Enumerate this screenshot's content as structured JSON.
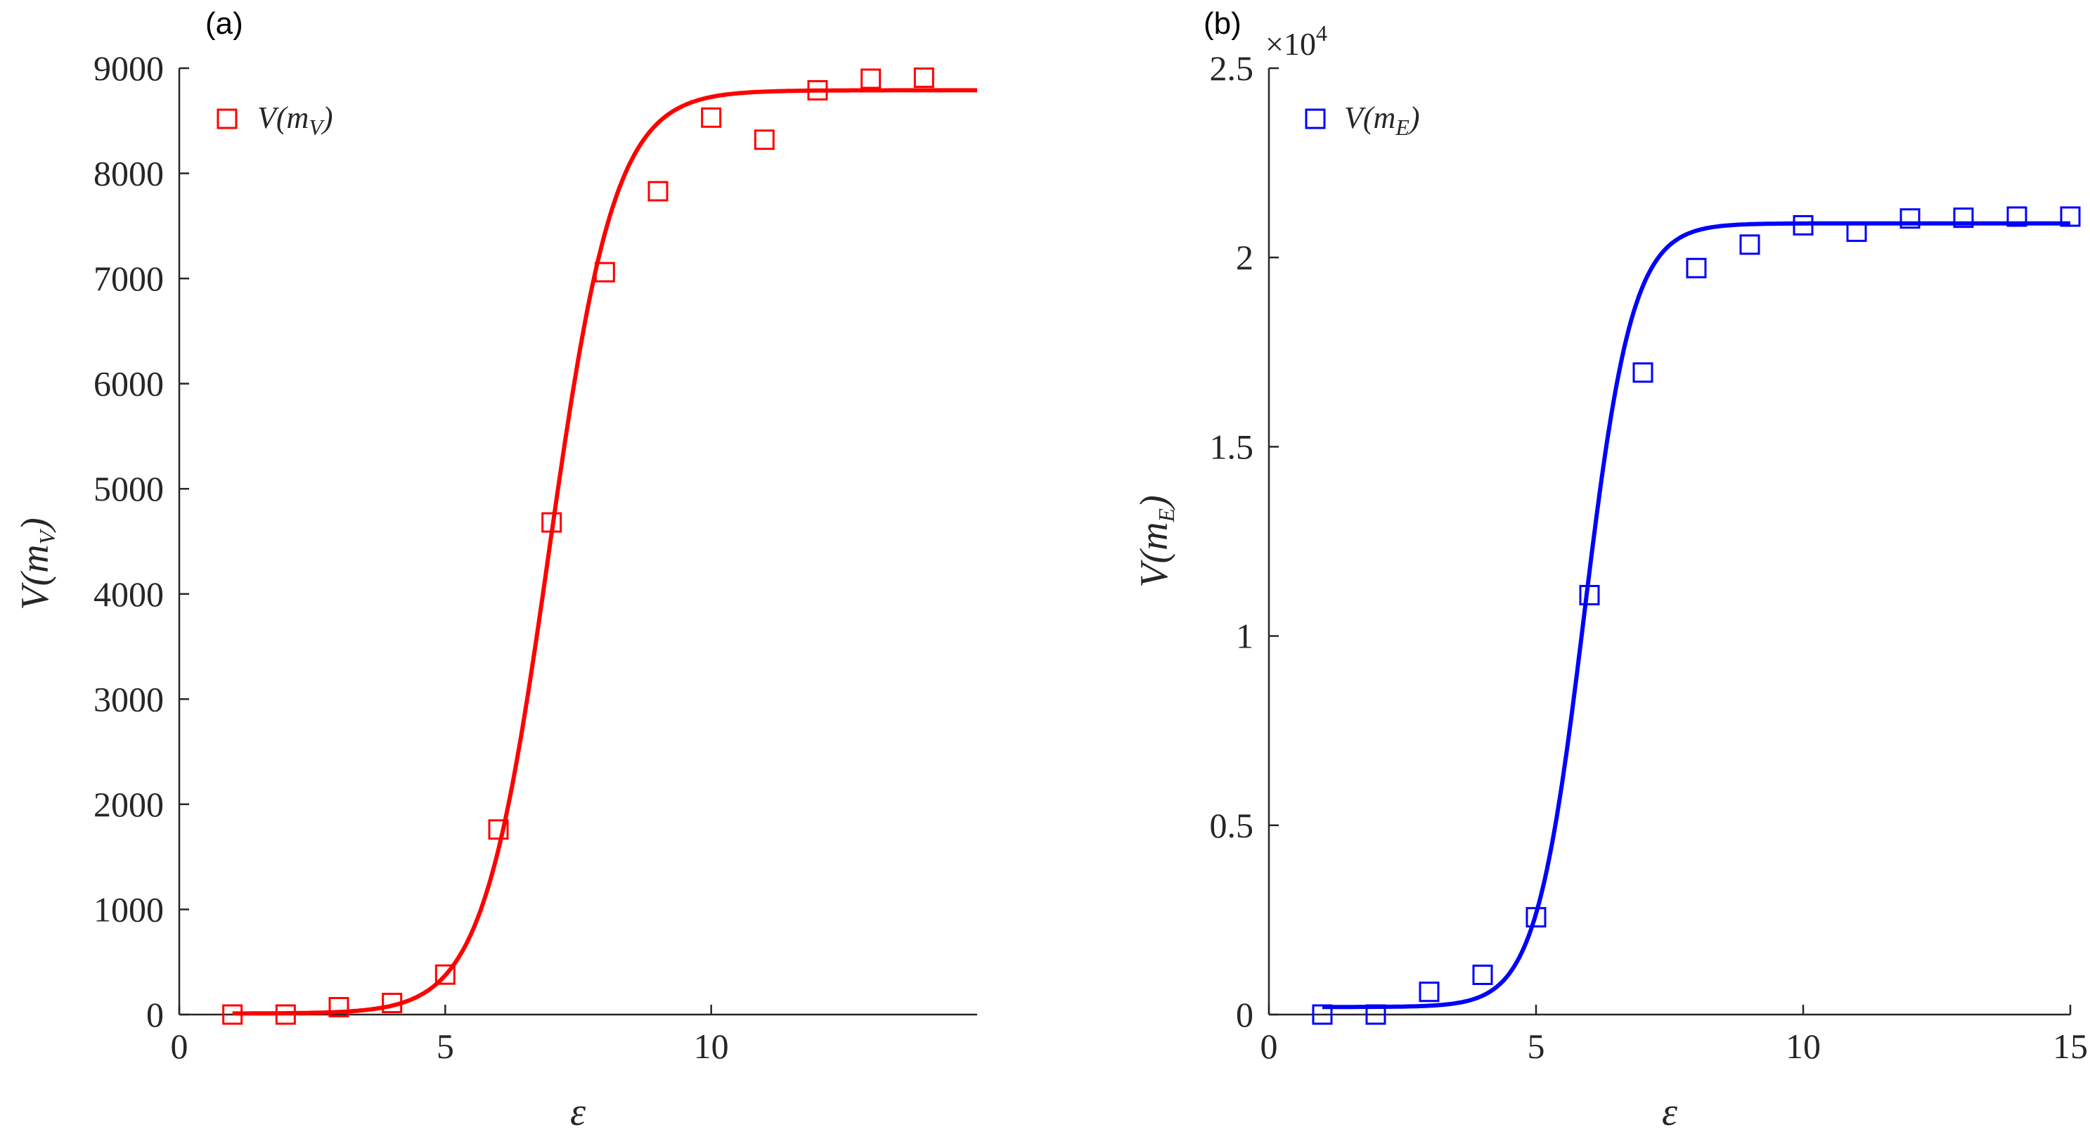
{
  "chart_data": [
    {
      "type": "scatter",
      "panel_label": "(a)",
      "xlabel": "ε",
      "ylabel_main": "V(m",
      "ylabel_sub": "V",
      "ylabel_close": ")",
      "xlim": [
        0,
        15
      ],
      "ylim": [
        0,
        9000
      ],
      "xticks": [
        0,
        5,
        10
      ],
      "yticks": [
        0,
        1000,
        2000,
        3000,
        4000,
        5000,
        6000,
        7000,
        8000,
        9000
      ],
      "xtick_labels": [
        "0",
        "5",
        "10"
      ],
      "ytick_labels": [
        "0",
        "1000",
        "2000",
        "3000",
        "4000",
        "5000",
        "6000",
        "7000",
        "8000",
        "9000"
      ],
      "multiplier": "",
      "legend_position": "top-left",
      "series": [
        {
          "name": "V(m",
          "name_sub": "V",
          "name_close": ")",
          "color": "#ff0000",
          "marker": "square",
          "x": [
            1,
            2,
            3,
            4,
            5,
            6,
            7,
            8,
            9,
            10,
            11,
            12,
            13,
            14
          ],
          "y": [
            0,
            0,
            70,
            110,
            380,
            1760,
            4680,
            7060,
            7830,
            8530,
            8320,
            8790,
            8900,
            8910
          ]
        }
      ],
      "fit": {
        "color": "#ff0000",
        "x_range": [
          1,
          15
        ],
        "base": 10,
        "top": 8790,
        "mid": 6.95,
        "width": 0.62
      }
    },
    {
      "type": "scatter",
      "panel_label": "(b)",
      "xlabel": "ε",
      "ylabel_main": "V(m",
      "ylabel_sub": "E",
      "ylabel_close": ")",
      "xlim": [
        0,
        15
      ],
      "ylim": [
        0,
        25000
      ],
      "xticks": [
        0,
        5,
        10,
        15
      ],
      "yticks": [
        0,
        5000,
        10000,
        15000,
        20000,
        25000
      ],
      "xtick_labels": [
        "0",
        "5",
        "10",
        "15"
      ],
      "ytick_labels": [
        "0",
        "0.5",
        "1",
        "1.5",
        "2",
        "2.5"
      ],
      "multiplier": "×10",
      "multiplier_exp": "4",
      "legend_position": "top-left",
      "series": [
        {
          "name": "V(m",
          "name_sub": "E",
          "name_close": ")",
          "color": "#0000ff",
          "marker": "square",
          "x": [
            1,
            2,
            3,
            4,
            5,
            6,
            7,
            8,
            9,
            10,
            11,
            12,
            13,
            14,
            15
          ],
          "y": [
            0,
            0,
            600,
            1050,
            2570,
            11080,
            16960,
            19720,
            20340,
            20850,
            20680,
            21030,
            21050,
            21080,
            21080
          ]
        }
      ],
      "fit": {
        "color": "#0000ff",
        "x_range": [
          1,
          15
        ],
        "base": 200,
        "top": 20900,
        "mid": 5.9,
        "width": 0.45
      }
    }
  ]
}
